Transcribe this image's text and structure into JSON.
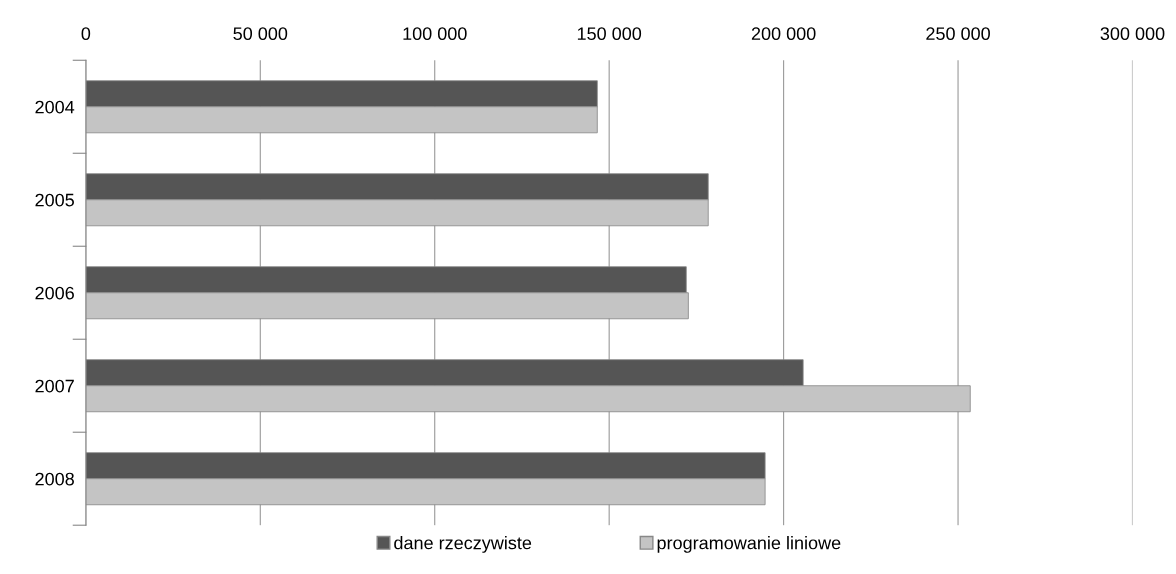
{
  "chart_data": {
    "type": "bar",
    "orientation": "horizontal",
    "categories": [
      "2004",
      "2005",
      "2006",
      "2007",
      "2008"
    ],
    "series": [
      {
        "name": "dane rzeczywiste",
        "color": "#555555",
        "values": [
          146600,
          178400,
          172100,
          205600,
          194700
        ]
      },
      {
        "name": "programowanie liniowe",
        "color": "#c4c4c4",
        "values": [
          146600,
          178400,
          172700,
          253500,
          194700
        ]
      }
    ],
    "xlim": [
      0,
      300000
    ],
    "xticks": [
      {
        "value": 0,
        "label": "0"
      },
      {
        "value": 50000,
        "label": "50 000"
      },
      {
        "value": 100000,
        "label": "100 000"
      },
      {
        "value": 150000,
        "label": "150 000"
      },
      {
        "value": 200000,
        "label": "200 000"
      },
      {
        "value": 250000,
        "label": "250 000"
      },
      {
        "value": 300000,
        "label": "300 000"
      }
    ],
    "grid": "x",
    "legend": "bottom"
  }
}
